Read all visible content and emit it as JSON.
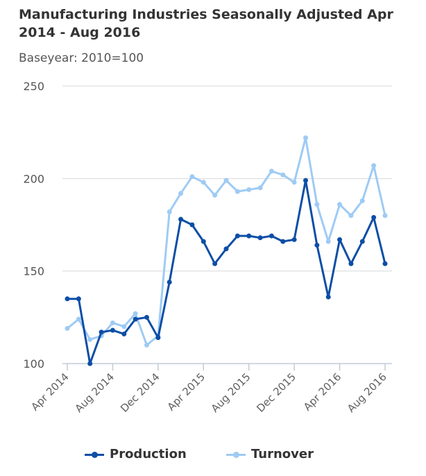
{
  "chart_data": {
    "type": "line",
    "title": "Manufacturing Industries Seasonally Adjusted Apr 2014 - Aug 2016",
    "subtitle": "Baseyear: 2010=100",
    "ylim": [
      100,
      250
    ],
    "yticks": [
      100,
      150,
      200,
      250
    ],
    "grid": true,
    "legend_position": "bottom",
    "x": [
      "Apr 2014",
      "May 2014",
      "Jun 2014",
      "Jul 2014",
      "Aug 2014",
      "Sep 2014",
      "Oct 2014",
      "Nov 2014",
      "Dec 2014",
      "Jan 2015",
      "Feb 2015",
      "Mar 2015",
      "Apr 2015",
      "May 2015",
      "Jun 2015",
      "Jul 2015",
      "Aug 2015",
      "Sep 2015",
      "Oct 2015",
      "Nov 2015",
      "Dec 2015",
      "Jan 2016",
      "Feb 2016",
      "Mar 2016",
      "Apr 2016",
      "May 2016",
      "Jun 2016",
      "Jul 2016",
      "Aug 2016"
    ],
    "xtick_labels": [
      "Apr 2014",
      "Aug 2014",
      "Dec 2014",
      "Apr 2015",
      "Aug 2015",
      "Dec 2015",
      "Apr 2016",
      "Aug 2016"
    ],
    "xtick_index": [
      0,
      4,
      8,
      12,
      16,
      20,
      24,
      28
    ],
    "series": [
      {
        "name": "Production",
        "color": "#0d4ea6",
        "values": [
          135,
          135,
          100,
          117,
          118,
          116,
          124,
          125,
          114,
          144,
          178,
          175,
          166,
          154,
          162,
          169,
          169,
          168,
          169,
          166,
          167,
          199,
          164,
          136,
          167,
          154,
          166,
          179,
          154
        ]
      },
      {
        "name": "Turnover",
        "color": "#9ecbf4",
        "values": [
          119,
          124,
          113,
          115,
          122,
          120,
          127,
          110,
          115,
          182,
          192,
          201,
          198,
          191,
          199,
          193,
          194,
          195,
          204,
          202,
          198,
          222,
          186,
          166,
          186,
          180,
          188,
          207,
          180
        ]
      }
    ]
  }
}
